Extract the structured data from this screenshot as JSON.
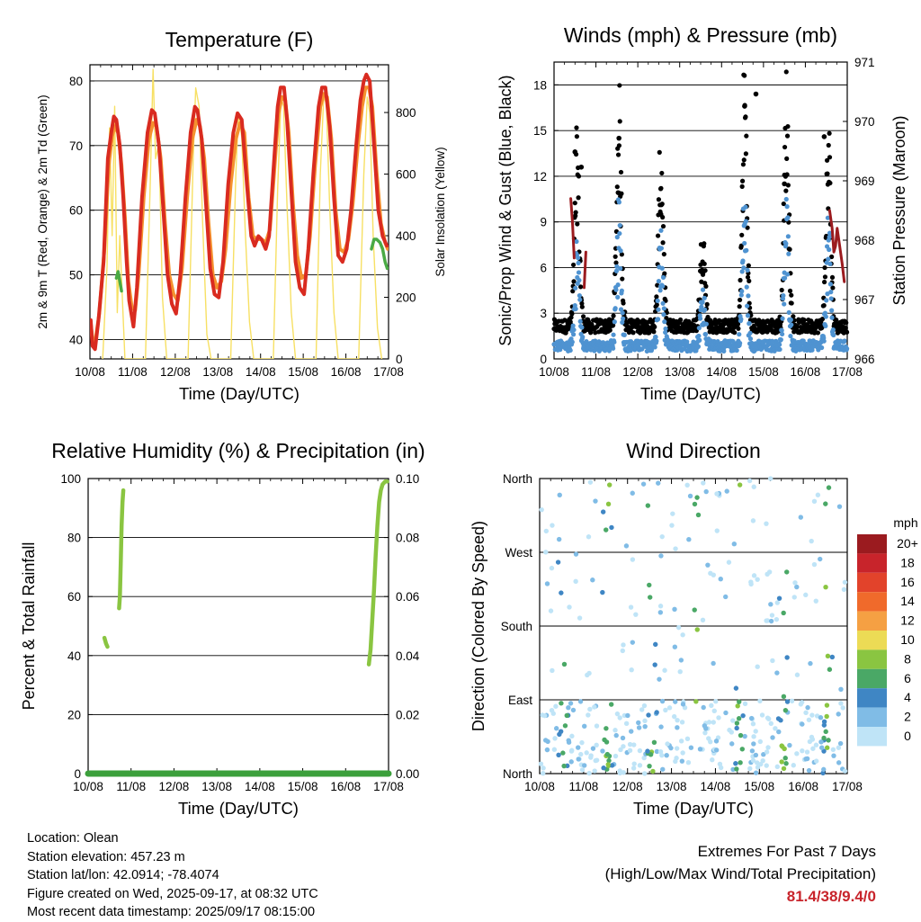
{
  "charts": [
    {
      "id": "temperature",
      "type": "line",
      "title": "Temperature (F)",
      "xlabel": "Time (Day/UTC)",
      "ylabel": "2m & 9m T (Red, Orange) & 2m Td (Green)",
      "ylabel_right": "Solar Insolation (Yellow)",
      "x_ticks": [
        "10/08",
        "11/08",
        "12/08",
        "13/08",
        "14/08",
        "15/08",
        "16/08",
        "17/08"
      ],
      "xlim": [
        0,
        7
      ],
      "ylim": [
        37,
        82.5
      ],
      "y_ticks": [
        40,
        50,
        60,
        70,
        80
      ],
      "ylim_right": [
        0,
        955
      ],
      "y_ticks_right": [
        0,
        200,
        400,
        600,
        800
      ],
      "grid": true,
      "colors": {
        "t2m": "#d92b20",
        "t9m": "#f5912e",
        "td": "#4aaa44",
        "solar": "#f7e064"
      }
    },
    {
      "id": "winds",
      "type": "scatter",
      "title": "Winds (mph) & Pressure (mb)",
      "xlabel": "Time (Day/UTC)",
      "ylabel": "Sonic/Prop Wind & Gust (Blue, Black)",
      "ylabel_right": "Station Pressure (Maroon)",
      "x_ticks": [
        "10/08",
        "11/08",
        "12/08",
        "13/08",
        "14/08",
        "15/08",
        "16/08",
        "17/08"
      ],
      "xlim": [
        0,
        7
      ],
      "ylim": [
        0,
        19.5
      ],
      "y_ticks": [
        0,
        3,
        6,
        9,
        12,
        15,
        18
      ],
      "ylim_right": [
        966,
        971
      ],
      "y_ticks_right": [
        966,
        967,
        968,
        969,
        970,
        971
      ],
      "grid": true,
      "colors": {
        "wind": "#4f93d1",
        "gust": "#000000",
        "pressure": "#9b1b1f"
      }
    },
    {
      "id": "humidity",
      "type": "line",
      "title": "Relative Humidity (%) & Precipitation (in)",
      "xlabel": "Time (Day/UTC)",
      "ylabel": "Percent & Total Rainfall",
      "x_ticks": [
        "10/08",
        "11/08",
        "12/08",
        "13/08",
        "14/08",
        "15/08",
        "16/08",
        "17/08"
      ],
      "xlim": [
        0,
        7
      ],
      "ylim": [
        0,
        100
      ],
      "y_ticks": [
        0,
        20,
        40,
        60,
        80,
        100
      ],
      "ylim_right": [
        0,
        0.1
      ],
      "y_ticks_right": [
        "0.00",
        "0.02",
        "0.04",
        "0.06",
        "0.08",
        "0.10"
      ],
      "grid": true,
      "colors": {
        "rh": "#8ac541",
        "rain": "#3ca03c"
      }
    },
    {
      "id": "direction",
      "type": "scatter",
      "title": "Wind Direction",
      "xlabel": "Time (Day/UTC)",
      "ylabel": "Direction (Colored By Speed)",
      "x_ticks": [
        "10/08",
        "11/08",
        "12/08",
        "13/08",
        "14/08",
        "15/08",
        "16/08",
        "17/08"
      ],
      "xlim": [
        0,
        7
      ],
      "ylim": [
        0,
        360
      ],
      "y_ticks": [
        0,
        90,
        180,
        270,
        360
      ],
      "y_tick_labels": [
        "North",
        "East",
        "South",
        "West",
        "North"
      ],
      "grid": true,
      "legend": {
        "title": "mph",
        "placement": "right",
        "labels": [
          "20+",
          "18",
          "16",
          "14",
          "12",
          "10",
          "8",
          "6",
          "4",
          "2",
          "0"
        ],
        "colors": [
          "#9b1b1f",
          "#c8242b",
          "#e2432b",
          "#f06a2b",
          "#f5a043",
          "#ecdb55",
          "#8ac541",
          "#4aa866",
          "#3f86c4",
          "#80bce6",
          "#bfe4f7"
        ]
      }
    }
  ],
  "chart_data": {
    "temperature": {
      "t2m": [
        [
          0.02,
          43
        ],
        [
          0.06,
          39
        ],
        [
          0.12,
          38.5
        ],
        [
          0.2,
          43
        ],
        [
          0.32,
          52
        ],
        [
          0.42,
          68
        ],
        [
          0.5,
          72
        ],
        [
          0.56,
          74.5
        ],
        [
          0.62,
          74
        ],
        [
          0.7,
          70
        ],
        [
          0.78,
          62
        ],
        [
          0.86,
          52
        ],
        [
          0.92,
          46
        ],
        [
          1.02,
          42
        ],
        [
          1.1,
          48
        ],
        [
          1.22,
          62
        ],
        [
          1.35,
          72
        ],
        [
          1.45,
          75.5
        ],
        [
          1.52,
          75
        ],
        [
          1.62,
          70
        ],
        [
          1.72,
          60
        ],
        [
          1.82,
          50
        ],
        [
          1.92,
          45.5
        ],
        [
          2.02,
          44
        ],
        [
          2.12,
          50
        ],
        [
          2.24,
          62
        ],
        [
          2.36,
          72
        ],
        [
          2.46,
          76
        ],
        [
          2.52,
          75.5
        ],
        [
          2.62,
          71
        ],
        [
          2.72,
          61
        ],
        [
          2.82,
          51
        ],
        [
          2.92,
          47
        ],
        [
          3.02,
          46.5
        ],
        [
          3.12,
          52
        ],
        [
          3.24,
          64
        ],
        [
          3.36,
          72
        ],
        [
          3.46,
          75
        ],
        [
          3.56,
          74
        ],
        [
          3.68,
          64
        ],
        [
          3.78,
          56
        ],
        [
          3.86,
          54.5
        ],
        [
          3.95,
          56
        ],
        [
          4.02,
          55.5
        ],
        [
          4.12,
          54
        ],
        [
          4.2,
          56
        ],
        [
          4.3,
          66
        ],
        [
          4.4,
          76
        ],
        [
          4.47,
          79
        ],
        [
          4.55,
          79
        ],
        [
          4.62,
          74
        ],
        [
          4.72,
          63
        ],
        [
          4.82,
          52
        ],
        [
          4.92,
          48
        ],
        [
          5.02,
          47
        ],
        [
          5.12,
          54
        ],
        [
          5.24,
          66
        ],
        [
          5.36,
          76
        ],
        [
          5.44,
          79
        ],
        [
          5.52,
          79
        ],
        [
          5.62,
          73
        ],
        [
          5.72,
          62
        ],
        [
          5.82,
          53
        ],
        [
          5.92,
          52
        ],
        [
          6.02,
          54
        ],
        [
          6.12,
          60
        ],
        [
          6.24,
          70
        ],
        [
          6.34,
          77
        ],
        [
          6.42,
          80
        ],
        [
          6.48,
          81
        ],
        [
          6.56,
          80
        ],
        [
          6.66,
          70
        ],
        [
          6.76,
          60
        ],
        [
          6.86,
          56
        ],
        [
          6.96,
          54.5
        ]
      ],
      "t9m": [
        [
          0.02,
          42.5
        ],
        [
          0.06,
          40
        ],
        [
          0.12,
          39.5
        ],
        [
          0.22,
          44
        ],
        [
          0.34,
          54
        ],
        [
          0.44,
          67
        ],
        [
          0.52,
          71.5
        ],
        [
          0.58,
          73
        ],
        [
          0.66,
          72
        ],
        [
          0.74,
          67
        ],
        [
          0.82,
          59
        ],
        [
          0.9,
          49
        ],
        [
          0.98,
          45
        ],
        [
          1.06,
          44.5
        ],
        [
          1.14,
          50
        ],
        [
          1.26,
          62
        ],
        [
          1.38,
          71
        ],
        [
          1.48,
          73.5
        ],
        [
          1.56,
          73
        ],
        [
          1.66,
          68
        ],
        [
          1.76,
          58
        ],
        [
          1.86,
          50
        ],
        [
          1.96,
          47
        ],
        [
          2.06,
          46
        ],
        [
          2.16,
          51
        ],
        [
          2.28,
          62
        ],
        [
          2.4,
          71
        ],
        [
          2.5,
          74
        ],
        [
          2.58,
          73
        ],
        [
          2.68,
          68
        ],
        [
          2.78,
          58
        ],
        [
          2.88,
          50
        ],
        [
          2.98,
          48
        ],
        [
          3.08,
          49
        ],
        [
          3.18,
          54
        ],
        [
          3.3,
          64
        ],
        [
          3.42,
          71
        ],
        [
          3.52,
          73.5
        ],
        [
          3.62,
          72
        ],
        [
          3.72,
          62
        ],
        [
          3.82,
          56
        ],
        [
          3.92,
          55.5
        ],
        [
          4.02,
          55.5
        ],
        [
          4.12,
          55
        ],
        [
          4.22,
          57
        ],
        [
          4.32,
          66
        ],
        [
          4.42,
          75
        ],
        [
          4.5,
          77.5
        ],
        [
          4.58,
          77
        ],
        [
          4.66,
          72
        ],
        [
          4.76,
          61
        ],
        [
          4.86,
          53
        ],
        [
          4.96,
          49.5
        ],
        [
          5.06,
          50
        ],
        [
          5.16,
          56
        ],
        [
          5.28,
          67
        ],
        [
          5.4,
          76
        ],
        [
          5.48,
          78
        ],
        [
          5.56,
          77.5
        ],
        [
          5.66,
          71
        ],
        [
          5.76,
          60
        ],
        [
          5.86,
          54
        ],
        [
          5.96,
          53.5
        ],
        [
          6.06,
          55.5
        ],
        [
          6.16,
          61
        ],
        [
          6.28,
          70
        ],
        [
          6.38,
          76
        ],
        [
          6.46,
          79
        ],
        [
          6.54,
          79
        ],
        [
          6.62,
          76
        ],
        [
          6.72,
          66
        ],
        [
          6.82,
          58
        ],
        [
          6.92,
          55
        ],
        [
          6.98,
          54
        ]
      ],
      "td": [
        [
          0.62,
          49.5
        ],
        [
          0.66,
          50.5
        ],
        [
          0.7,
          49
        ],
        [
          0.74,
          47.5
        ],
        [
          6.6,
          54
        ],
        [
          6.66,
          55.5
        ],
        [
          6.72,
          55.5
        ],
        [
          6.8,
          55
        ],
        [
          6.86,
          54
        ],
        [
          6.92,
          52
        ],
        [
          6.97,
          51
        ]
      ],
      "solar": [
        [
          0.3,
          0
        ],
        [
          0.4,
          300
        ],
        [
          0.46,
          750
        ],
        [
          0.52,
          400
        ],
        [
          0.58,
          820
        ],
        [
          0.64,
          150
        ],
        [
          0.7,
          400
        ],
        [
          0.76,
          200
        ],
        [
          0.82,
          0
        ],
        [
          1.3,
          0
        ],
        [
          1.42,
          600
        ],
        [
          1.48,
          940
        ],
        [
          1.54,
          650
        ],
        [
          1.62,
          700
        ],
        [
          1.7,
          200
        ],
        [
          1.8,
          0
        ],
        [
          2.3,
          0
        ],
        [
          2.42,
          650
        ],
        [
          2.48,
          880
        ],
        [
          2.56,
          820
        ],
        [
          2.64,
          450
        ],
        [
          2.74,
          80
        ],
        [
          2.84,
          0
        ],
        [
          3.3,
          0
        ],
        [
          3.42,
          600
        ],
        [
          3.48,
          800
        ],
        [
          3.56,
          720
        ],
        [
          3.64,
          420
        ],
        [
          3.74,
          120
        ],
        [
          3.84,
          0
        ],
        [
          4.3,
          0
        ],
        [
          4.4,
          550
        ],
        [
          4.48,
          850
        ],
        [
          4.54,
          820
        ],
        [
          4.62,
          500
        ],
        [
          4.72,
          150
        ],
        [
          4.82,
          0
        ],
        [
          5.3,
          0
        ],
        [
          5.4,
          600
        ],
        [
          5.48,
          850
        ],
        [
          5.54,
          830
        ],
        [
          5.62,
          500
        ],
        [
          5.72,
          150
        ],
        [
          5.82,
          0
        ],
        [
          6.3,
          0
        ],
        [
          6.42,
          600
        ],
        [
          6.5,
          850
        ],
        [
          6.56,
          800
        ],
        [
          6.64,
          400
        ],
        [
          6.74,
          100
        ],
        [
          6.84,
          0
        ]
      ]
    },
    "winds": {
      "wind_pattern": {
        "day_peak_center": 0.55,
        "peaks": [
          6.5,
          8.0,
          6.5,
          3.5,
          9.0,
          8.5,
          7.0
        ],
        "night_base": 1.0
      },
      "gust_highlights": [
        [
          0.5,
          13.6
        ],
        [
          0.65,
          12.6
        ],
        [
          1.55,
          14.5
        ],
        [
          2.55,
          9.5
        ],
        [
          3.55,
          7.5
        ],
        [
          4.55,
          16.6
        ],
        [
          4.82,
          17.4
        ],
        [
          5.5,
          11.5
        ],
        [
          6.45,
          14.6
        ]
      ],
      "pressure": [
        [
          0.4,
          968.7
        ],
        [
          0.44,
          968.3
        ],
        [
          0.48,
          967.7
        ],
        [
          0.72,
          967.2
        ],
        [
          0.76,
          967.8
        ],
        [
          6.58,
          968.5
        ],
        [
          6.64,
          968.2
        ],
        [
          6.68,
          967.8
        ],
        [
          6.72,
          967.9
        ],
        [
          6.76,
          968.2
        ],
        [
          6.82,
          967.9
        ],
        [
          6.88,
          967.6
        ],
        [
          6.93,
          967.3
        ]
      ]
    },
    "humidity": {
      "rh_segments": [
        [
          [
            0.38,
            46
          ],
          [
            0.42,
            44
          ],
          [
            0.45,
            43
          ]
        ],
        [
          [
            0.72,
            56
          ],
          [
            0.74,
            60
          ],
          [
            0.76,
            72
          ],
          [
            0.78,
            84
          ],
          [
            0.8,
            92
          ],
          [
            0.82,
            96
          ]
        ],
        [
          [
            6.54,
            37
          ],
          [
            6.58,
            42
          ],
          [
            6.62,
            52
          ],
          [
            6.66,
            62
          ],
          [
            6.7,
            74
          ],
          [
            6.74,
            84
          ],
          [
            6.78,
            92
          ],
          [
            6.82,
            96
          ],
          [
            6.86,
            98
          ],
          [
            6.92,
            99
          ],
          [
            6.97,
            99
          ]
        ]
      ],
      "rain_total": [
        [
          0,
          0
        ],
        [
          7,
          0
        ]
      ]
    }
  },
  "footer": {
    "location": "Location: Olean",
    "elevation": "Station elevation: 457.23 m",
    "latlon": "Station lat/lon: 42.0914; -78.4074",
    "created": "Figure created on Wed, 2025-09-17, at 08:32 UTC",
    "recent": "Most recent data timestamp: 2025/09/17 08:15:00",
    "extremes_line1": "Extremes For Past 7 Days",
    "extremes_line2": "(High/Low/Max Wind/Total Precipitation)",
    "extremes_values": "81.4/38/9.4/0"
  }
}
